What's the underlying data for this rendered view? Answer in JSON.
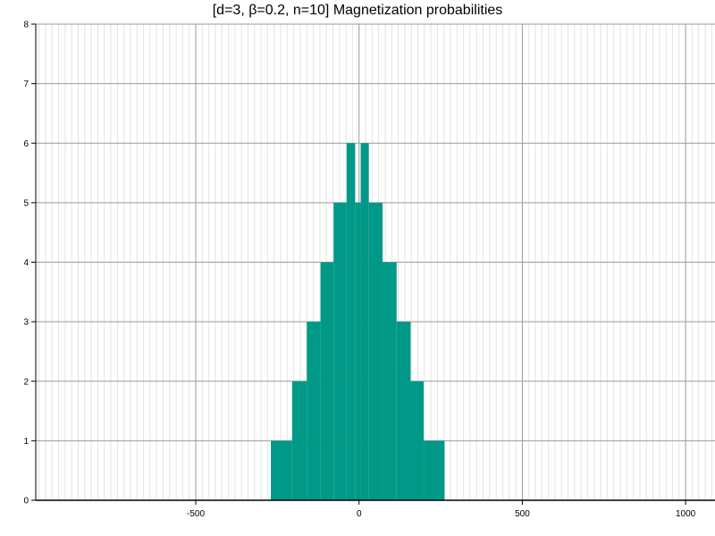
{
  "chart_data": {
    "type": "bar",
    "title": "[d=3, β=0.2, n=10] Magnetization probabilities",
    "xlabel": "",
    "ylabel": "",
    "xlim": [
      -990,
      1090
    ],
    "ylim": [
      0,
      8
    ],
    "x_ticks": [
      -500,
      0,
      500,
      1000
    ],
    "x_minor_step": 20,
    "y_ticks": [
      0,
      1,
      2,
      3,
      4,
      5,
      6,
      7,
      8
    ],
    "grid": true,
    "bar_color": "#009988",
    "bars": [
      {
        "x0": -270,
        "x1": -205,
        "value": 1
      },
      {
        "x0": -205,
        "x1": -160,
        "value": 2
      },
      {
        "x0": -160,
        "x1": -118,
        "value": 3
      },
      {
        "x0": -118,
        "x1": -78,
        "value": 4
      },
      {
        "x0": -78,
        "x1": -38,
        "value": 5
      },
      {
        "x0": -38,
        "x1": -12,
        "value": 6
      },
      {
        "x0": -12,
        "x1": 5,
        "value": 5
      },
      {
        "x0": 5,
        "x1": 30,
        "value": 6
      },
      {
        "x0": 30,
        "x1": 72,
        "value": 5
      },
      {
        "x0": 72,
        "x1": 115,
        "value": 4
      },
      {
        "x0": 115,
        "x1": 158,
        "value": 3
      },
      {
        "x0": 158,
        "x1": 198,
        "value": 2
      },
      {
        "x0": 198,
        "x1": 262,
        "value": 1
      }
    ]
  }
}
